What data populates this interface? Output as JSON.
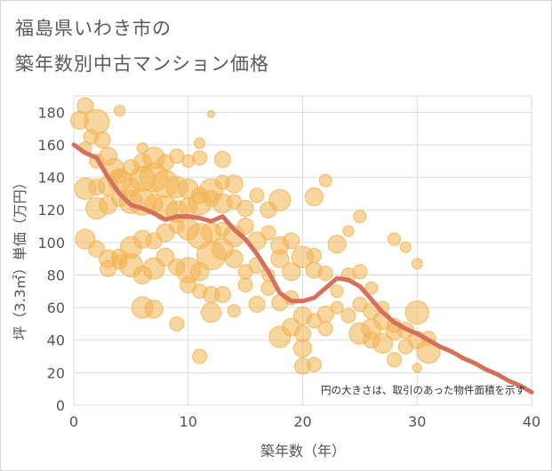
{
  "chart_data": {
    "type": "scatter",
    "title_line1": "福島県いわき市の",
    "title_line2": "築年数別中古マンション価格",
    "xlabel": "築年数（年）",
    "ylabel": "坪（3.3㎡）単価（万円）",
    "xlim": [
      0,
      40
    ],
    "ylim": [
      0,
      190
    ],
    "xticks": [
      0,
      10,
      20,
      30,
      40
    ],
    "yticks": [
      0,
      20,
      40,
      60,
      80,
      100,
      120,
      140,
      160,
      180
    ],
    "note": "円の大きさは、取引のあった物件面積を示す",
    "grid": true,
    "colors": {
      "bubble": "#f2b552",
      "trend": "#d4705c",
      "grid": "#d6dde3"
    },
    "series": [
      {
        "type": "bubble",
        "points": [
          [
            0.5,
            175,
            10
          ],
          [
            1,
            184,
            9
          ],
          [
            2,
            174,
            14
          ],
          [
            1.5,
            165,
            8
          ],
          [
            2.5,
            163,
            9
          ],
          [
            4,
            181,
            6
          ],
          [
            1,
            158,
            7
          ],
          [
            2,
            150,
            8
          ],
          [
            3,
            153,
            10
          ],
          [
            3.5,
            145,
            12
          ],
          [
            4,
            141,
            8
          ],
          [
            5,
            146,
            9
          ],
          [
            6,
            158,
            6
          ],
          [
            6,
            149,
            10
          ],
          [
            7,
            152,
            12
          ],
          [
            8,
            149,
            9
          ],
          [
            9,
            153,
            8
          ],
          [
            10,
            150,
            7
          ],
          [
            11,
            161,
            6
          ],
          [
            11,
            152,
            8
          ],
          [
            12,
            179,
            4
          ],
          [
            13,
            151,
            9
          ],
          [
            1,
            133,
            12
          ],
          [
            2,
            134,
            9
          ],
          [
            3,
            135,
            11
          ],
          [
            4,
            138,
            13
          ],
          [
            5,
            134,
            10
          ],
          [
            6,
            139,
            14
          ],
          [
            7,
            140,
            16
          ],
          [
            8,
            136,
            15
          ],
          [
            9,
            134,
            12
          ],
          [
            10,
            133,
            11
          ],
          [
            11,
            129,
            9
          ],
          [
            12,
            132,
            13
          ],
          [
            13,
            137,
            8
          ],
          [
            14,
            136,
            10
          ],
          [
            2,
            121,
            12
          ],
          [
            3,
            123,
            10
          ],
          [
            4,
            127,
            9
          ],
          [
            5,
            125,
            13
          ],
          [
            6,
            125,
            15
          ],
          [
            7,
            124,
            10
          ],
          [
            8,
            121,
            14
          ],
          [
            9,
            119,
            12
          ],
          [
            10,
            122,
            10
          ],
          [
            11,
            124,
            13
          ],
          [
            12,
            127,
            9
          ],
          [
            13,
            124,
            11
          ],
          [
            14,
            125,
            8
          ],
          [
            15,
            121,
            9
          ],
          [
            16,
            129,
            8
          ],
          [
            17,
            120,
            9
          ],
          [
            18,
            126,
            12
          ],
          [
            21,
            128,
            10
          ],
          [
            22,
            138,
            7
          ],
          [
            24,
            107,
            6
          ],
          [
            25,
            116,
            7
          ],
          [
            28,
            102,
            7
          ],
          [
            29,
            97,
            6
          ],
          [
            30,
            87,
            6
          ],
          [
            1,
            102,
            11
          ],
          [
            2,
            96,
            9
          ],
          [
            3,
            90,
            10
          ],
          [
            4,
            91,
            9
          ],
          [
            5,
            97,
            12
          ],
          [
            6,
            102,
            10
          ],
          [
            7,
            101,
            9
          ],
          [
            8,
            106,
            10
          ],
          [
            9,
            110,
            8
          ],
          [
            10,
            108,
            12
          ],
          [
            11,
            104,
            14
          ],
          [
            12,
            106,
            11
          ],
          [
            13,
            108,
            8
          ],
          [
            14,
            104,
            12
          ],
          [
            15,
            110,
            9
          ],
          [
            16,
            101,
            10
          ],
          [
            17,
            106,
            8
          ],
          [
            18,
            98,
            10
          ],
          [
            19,
            101,
            9
          ],
          [
            20,
            91,
            12
          ],
          [
            21,
            92,
            8
          ],
          [
            23,
            99,
            10
          ],
          [
            3,
            84,
            9
          ],
          [
            4,
            88,
            8
          ],
          [
            5,
            86,
            13
          ],
          [
            6,
            80,
            10
          ],
          [
            7,
            84,
            12
          ],
          [
            8,
            91,
            10
          ],
          [
            9,
            85,
            9
          ],
          [
            10,
            83,
            14
          ],
          [
            11,
            82,
            10
          ],
          [
            12,
            92,
            16
          ],
          [
            13,
            96,
            12
          ],
          [
            14,
            90,
            10
          ],
          [
            15,
            82,
            8
          ],
          [
            16,
            86,
            9
          ],
          [
            18,
            90,
            10
          ],
          [
            19,
            82,
            10
          ],
          [
            21,
            83,
            9
          ],
          [
            22,
            81,
            8
          ],
          [
            25,
            82,
            8
          ],
          [
            26,
            72,
            7
          ],
          [
            6,
            60,
            12
          ],
          [
            7,
            59,
            10
          ],
          [
            9,
            50,
            8
          ],
          [
            10,
            74,
            9
          ],
          [
            11,
            70,
            8
          ],
          [
            12,
            68,
            9
          ],
          [
            12,
            57,
            11
          ],
          [
            13,
            68,
            9
          ],
          [
            16,
            62,
            9
          ],
          [
            17,
            72,
            8
          ],
          [
            18,
            63,
            9
          ],
          [
            19,
            66,
            8
          ],
          [
            20,
            55,
            10
          ],
          [
            21,
            52,
            8
          ],
          [
            22,
            56,
            9
          ],
          [
            23,
            60,
            7
          ],
          [
            24,
            55,
            8
          ],
          [
            25,
            62,
            8
          ],
          [
            26,
            58,
            9
          ],
          [
            26,
            47,
            11
          ],
          [
            27,
            52,
            10
          ],
          [
            28,
            49,
            8
          ],
          [
            29,
            46,
            9
          ],
          [
            30,
            57,
            13
          ],
          [
            18,
            42,
            12
          ],
          [
            19,
            48,
            10
          ],
          [
            20,
            44,
            9
          ],
          [
            22,
            47,
            8
          ],
          [
            25,
            44,
            12
          ],
          [
            27,
            38,
            11
          ],
          [
            28,
            45,
            9
          ],
          [
            29,
            36,
            8
          ],
          [
            30,
            40,
            10
          ],
          [
            31,
            41,
            8
          ],
          [
            31,
            33,
            13
          ],
          [
            11,
            30,
            8
          ],
          [
            20,
            35,
            10
          ],
          [
            20,
            24,
            9
          ],
          [
            21,
            25,
            8
          ],
          [
            28,
            28,
            8
          ],
          [
            30,
            23,
            5
          ],
          [
            14,
            58,
            7
          ],
          [
            15,
            74,
            8
          ],
          [
            17,
            80,
            7
          ],
          [
            23,
            70,
            7
          ],
          [
            24,
            80,
            8
          ],
          [
            27,
            60,
            7
          ],
          [
            26,
            40,
            9
          ]
        ]
      },
      {
        "type": "line",
        "name": "",
        "x": [
          0,
          1,
          2,
          3,
          4,
          5,
          6,
          7,
          8,
          9,
          10,
          11,
          12,
          13,
          14,
          15,
          16,
          17,
          18,
          19,
          20,
          21,
          22,
          23,
          24,
          25,
          26,
          27,
          28,
          29,
          30,
          31,
          32,
          33,
          34,
          35,
          36,
          37,
          38,
          39,
          40
        ],
        "y": [
          160,
          155,
          152,
          140,
          130,
          123,
          121,
          118,
          114,
          116,
          116,
          115,
          113,
          116,
          108,
          102,
          93,
          82,
          69,
          64,
          64,
          66,
          72,
          78,
          77,
          73,
          65,
          57,
          51,
          47,
          44,
          40,
          36,
          33,
          29,
          26,
          22,
          19,
          15,
          12,
          8
        ]
      }
    ]
  }
}
